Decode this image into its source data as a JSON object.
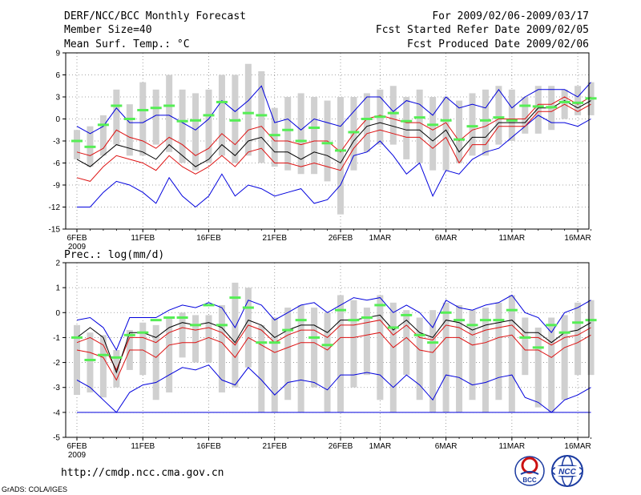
{
  "header": {
    "title": "DERF/NCC/BCC Monthly Forecast",
    "member_size": "Member Size=40",
    "variable": "Mean Surf. Temp.: °C",
    "period": "For 2009/02/06-2009/03/17",
    "started": "Fcst Started Refer Date 2009/02/05",
    "produced": "Fcst Produced Date 2009/02/06"
  },
  "footer": {
    "url": "http://cmdp.ncc.cma.gov.cn",
    "grads": "GrADS: COLA/IGES",
    "logo_bcc_text": "BCC",
    "logo_ncc_text": "NCC"
  },
  "colors": {
    "bar": "#d0d0d0",
    "median": "#55ee55",
    "mean": "#000000",
    "inner": "#dd1111",
    "outer": "#0000dd",
    "grid": "#888888"
  },
  "x_labels": [
    {
      "day": 0,
      "label": "6FEB",
      "sub": "2009"
    },
    {
      "day": 5,
      "label": "11FEB"
    },
    {
      "day": 10,
      "label": "16FEB"
    },
    {
      "day": 15,
      "label": "21FEB"
    },
    {
      "day": 20,
      "label": "26FEB"
    },
    {
      "day": 23,
      "label": "1MAR"
    },
    {
      "day": 28,
      "label": "6MAR"
    },
    {
      "day": 33,
      "label": "11MAR"
    },
    {
      "day": 38,
      "label": "16MAR"
    }
  ],
  "chart_data": [
    {
      "type": "line",
      "title": "Mean Surf. Temp.: °C",
      "ylim": [
        -15,
        9
      ],
      "yticks": [
        -15,
        -12,
        -9,
        -6,
        -3,
        0,
        3,
        6,
        9
      ],
      "days": 40,
      "bar_top": [
        -1.5,
        -1.0,
        0.5,
        4.0,
        2.0,
        5.0,
        4.0,
        6.0,
        4.0,
        3.5,
        4.0,
        6.0,
        6.0,
        7.5,
        6.5,
        1.5,
        3.0,
        3.5,
        3.0,
        2.5,
        3.0,
        3.0,
        3.5,
        4.0,
        4.5,
        3.0,
        4.0,
        3.0,
        3.0,
        2.5,
        3.5,
        4.0,
        4.5,
        4.0,
        3.0,
        4.5,
        4.5,
        4.0,
        4.5,
        5.0
      ],
      "bar_bottom": [
        -5.5,
        -6.5,
        -5.0,
        -3.5,
        -5.0,
        -5.0,
        -3.5,
        -4.5,
        -6.0,
        -7.0,
        -6.0,
        -5.0,
        -6.0,
        -5.0,
        -6.0,
        -6.5,
        -7.0,
        -7.5,
        -7.5,
        -8.5,
        -13.0,
        -7.0,
        -4.5,
        -3.5,
        -3.5,
        -5.5,
        -6.0,
        -7.0,
        -7.0,
        -6.0,
        -5.0,
        -5.0,
        -3.5,
        -3.0,
        -2.0,
        -2.0,
        -1.5,
        0.0,
        0.5,
        0.5
      ],
      "median": [
        -3.0,
        -3.8,
        -0.8,
        1.8,
        0.0,
        1.2,
        1.5,
        1.8,
        -0.3,
        -0.2,
        0.5,
        2.3,
        -0.2,
        0.8,
        0.5,
        -2.2,
        -1.5,
        -3.0,
        -1.2,
        -3.3,
        -4.3,
        -1.8,
        0.0,
        0.3,
        0.8,
        -0.3,
        0.2,
        -0.8,
        -0.2,
        -2.8,
        -1.0,
        -0.2,
        0.2,
        -0.2,
        1.8,
        1.7,
        1.6,
        2.3,
        2.2,
        2.8
      ],
      "mean": [
        -5.5,
        -6.5,
        -5.0,
        -3.5,
        -4.0,
        -4.5,
        -5.5,
        -3.5,
        -5.0,
        -6.5,
        -5.5,
        -3.5,
        -5.0,
        -3.0,
        -2.5,
        -4.5,
        -4.5,
        -5.5,
        -4.5,
        -5.0,
        -6.0,
        -3.0,
        -1.0,
        -0.5,
        -1.0,
        -1.5,
        -1.5,
        -3.0,
        -1.5,
        -4.5,
        -2.5,
        -2.5,
        -0.5,
        -0.5,
        -0.5,
        1.5,
        1.5,
        2.5,
        1.5,
        2.5
      ],
      "inner_upper": [
        -4.5,
        -5.0,
        -4.0,
        -1.5,
        -2.5,
        -3.0,
        -4.0,
        -2.5,
        -3.5,
        -5.0,
        -4.0,
        -2.0,
        -3.5,
        -1.5,
        -1.0,
        -3.0,
        -3.0,
        -3.5,
        -3.0,
        -3.0,
        -4.5,
        -2.0,
        0.0,
        0.5,
        0.0,
        -0.5,
        -0.5,
        -1.5,
        -0.5,
        -3.0,
        -1.5,
        -1.0,
        0.0,
        0.0,
        0.0,
        2.0,
        2.0,
        3.0,
        2.0,
        3.0
      ],
      "inner_lower": [
        -8.0,
        -8.5,
        -6.5,
        -5.0,
        -5.5,
        -6.0,
        -7.0,
        -5.0,
        -6.5,
        -7.5,
        -6.5,
        -5.0,
        -6.5,
        -4.5,
        -4.0,
        -6.0,
        -6.0,
        -6.5,
        -6.0,
        -6.5,
        -7.0,
        -4.0,
        -2.0,
        -1.5,
        -2.0,
        -2.5,
        -2.5,
        -4.0,
        -2.5,
        -6.0,
        -3.5,
        -3.5,
        -1.0,
        -1.0,
        -1.0,
        1.0,
        1.0,
        2.0,
        1.0,
        2.0
      ],
      "outer_upper": [
        -1.0,
        -2.0,
        -1.0,
        1.5,
        -0.5,
        -0.5,
        0.5,
        0.5,
        -0.5,
        -1.5,
        0.0,
        2.5,
        1.0,
        2.5,
        4.5,
        -0.5,
        0.0,
        -1.5,
        0.0,
        -0.5,
        -1.0,
        1.0,
        3.0,
        3.0,
        1.0,
        2.5,
        2.0,
        0.5,
        3.0,
        1.5,
        2.0,
        1.5,
        4.0,
        1.5,
        3.0,
        4.0,
        4.0,
        4.0,
        3.0,
        5.0
      ],
      "outer_lower": [
        -12.0,
        -12.0,
        -10.0,
        -8.5,
        -9.0,
        -10.0,
        -11.5,
        -8.0,
        -10.5,
        -12.0,
        -10.5,
        -7.5,
        -10.5,
        -9.0,
        -9.5,
        -10.5,
        -10.0,
        -9.5,
        -11.5,
        -11.0,
        -9.0,
        -5.0,
        -4.5,
        -3.0,
        -5.0,
        -7.5,
        -6.0,
        -10.5,
        -7.0,
        -7.5,
        -5.5,
        -4.5,
        -4.0,
        -2.5,
        -1.0,
        0.5,
        -0.5,
        -0.5,
        -1.0,
        0.0
      ]
    },
    {
      "type": "line",
      "title": "Prec.: log(mm/d)",
      "ylim": [
        -5,
        2
      ],
      "yticks": [
        -5,
        -4,
        -3,
        -2,
        -1,
        0,
        1,
        2
      ],
      "days": 40,
      "bar_top": [
        -0.5,
        -0.8,
        -0.9,
        -1.5,
        -0.7,
        -0.4,
        -0.5,
        -0.2,
        0.0,
        -0.1,
        -0.1,
        0.3,
        1.2,
        1.0,
        -0.5,
        -0.2,
        0.2,
        0.3,
        0.2,
        0.0,
        0.7,
        0.5,
        0.2,
        0.7,
        0.4,
        0.1,
        -0.2,
        0.1,
        0.4,
        0.3,
        0.1,
        0.2,
        0.4,
        0.7,
        -0.2,
        -0.6,
        -0.2,
        -0.1,
        0.4,
        0.5
      ],
      "bar_bottom": [
        -3.3,
        -3.2,
        -3.4,
        -3.0,
        -2.3,
        -2.5,
        -3.5,
        -3.2,
        -1.8,
        -2.0,
        -2.0,
        -3.2,
        -3.0,
        -2.2,
        -4.0,
        -4.0,
        -3.5,
        -4.0,
        -3.0,
        -4.0,
        -4.0,
        -3.0,
        -2.5,
        -3.5,
        -4.0,
        -2.5,
        -3.5,
        -4.0,
        -4.0,
        -4.0,
        -3.5,
        -4.0,
        -3.5,
        -4.0,
        -2.5,
        -3.8,
        -4.0,
        -3.5,
        -2.5,
        -2.5
      ],
      "median": [
        -1.0,
        -1.9,
        -1.7,
        -1.8,
        -0.9,
        -0.8,
        -0.3,
        -0.2,
        -0.2,
        -0.5,
        0.3,
        -0.5,
        0.6,
        0.2,
        -1.2,
        -1.2,
        -0.7,
        -0.3,
        -1.0,
        -1.3,
        0.1,
        -0.3,
        -0.2,
        0.3,
        -0.6,
        -0.1,
        -0.9,
        -1.2,
        0.0,
        -0.3,
        -0.5,
        -0.3,
        -0.3,
        0.1,
        -1.0,
        -1.4,
        -0.5,
        -0.8,
        -0.4,
        -0.3
      ],
      "mean": [
        -1.0,
        -0.6,
        -1.0,
        -2.4,
        -0.8,
        -0.8,
        -1.0,
        -0.6,
        -0.4,
        -0.5,
        -0.4,
        -0.6,
        -1.2,
        -0.3,
        -0.5,
        -1.0,
        -0.7,
        -0.5,
        -0.5,
        -0.8,
        -0.3,
        -0.3,
        -0.2,
        -0.1,
        -0.7,
        -0.3,
        -0.8,
        -1.0,
        -0.3,
        -0.4,
        -0.7,
        -0.5,
        -0.4,
        -0.3,
        -0.8,
        -0.8,
        -1.2,
        -0.8,
        -0.7,
        -0.4
      ],
      "inner_upper": [
        -1.2,
        -1.0,
        -1.3,
        -2.3,
        -1.0,
        -1.0,
        -1.2,
        -0.8,
        -0.6,
        -0.7,
        -0.6,
        -0.8,
        -1.3,
        -0.5,
        -0.7,
        -1.2,
        -0.9,
        -0.7,
        -0.7,
        -1.0,
        -0.5,
        -0.5,
        -0.4,
        -0.3,
        -0.9,
        -0.5,
        -1.0,
        -1.1,
        -0.5,
        -0.6,
        -0.9,
        -0.7,
        -0.6,
        -0.5,
        -1.0,
        -1.0,
        -1.3,
        -1.0,
        -0.9,
        -0.6
      ],
      "inner_lower": [
        -1.5,
        -1.6,
        -1.8,
        -2.7,
        -1.5,
        -1.5,
        -1.8,
        -1.3,
        -1.2,
        -1.2,
        -1.0,
        -1.2,
        -1.8,
        -1.0,
        -1.3,
        -1.6,
        -1.4,
        -1.2,
        -1.2,
        -1.5,
        -1.0,
        -1.0,
        -0.9,
        -0.8,
        -1.4,
        -1.0,
        -1.5,
        -1.6,
        -1.0,
        -1.0,
        -1.3,
        -1.2,
        -1.0,
        -0.9,
        -1.5,
        -1.5,
        -1.8,
        -1.4,
        -1.2,
        -0.9
      ],
      "outer_upper": [
        -0.3,
        -0.2,
        -0.6,
        -1.5,
        -0.2,
        -0.2,
        -0.2,
        0.1,
        0.3,
        0.2,
        0.4,
        0.2,
        -0.6,
        0.5,
        0.3,
        -0.3,
        0.0,
        0.3,
        0.4,
        0.0,
        0.3,
        0.6,
        0.5,
        0.6,
        0.0,
        0.3,
        0.0,
        -0.6,
        0.5,
        0.2,
        0.1,
        0.3,
        0.4,
        0.7,
        0.0,
        -0.2,
        -0.8,
        0.0,
        0.2,
        0.5
      ],
      "outer_lower": [
        -2.7,
        -3.0,
        -3.5,
        -4.0,
        -3.2,
        -2.9,
        -2.8,
        -2.5,
        -2.2,
        -2.3,
        -2.1,
        -2.7,
        -2.9,
        -2.2,
        -2.7,
        -3.3,
        -2.8,
        -2.7,
        -2.8,
        -3.1,
        -2.5,
        -2.5,
        -2.4,
        -2.5,
        -3.0,
        -2.5,
        -2.9,
        -3.5,
        -2.5,
        -2.6,
        -2.9,
        -2.8,
        -2.6,
        -2.5,
        -3.4,
        -3.6,
        -4.0,
        -3.5,
        -3.3,
        -3.0
      ],
      "floor_line": -4.0
    }
  ]
}
